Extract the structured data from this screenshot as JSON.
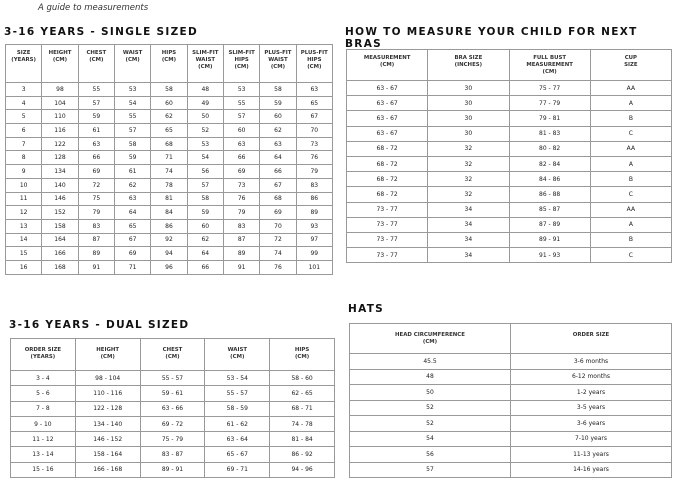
{
  "caption": "A guide to measurements",
  "single": {
    "title": "3-16 YEARS - SINGLE SIZED",
    "headers": [
      [
        "SIZE",
        "(YEARS)"
      ],
      [
        "HEIGHT",
        "(CM)"
      ],
      [
        "CHEST",
        "(CM)"
      ],
      [
        "WAIST",
        "(CM)"
      ],
      [
        "HIPS",
        "(CM)"
      ],
      [
        "SLIM-FIT",
        "WAIST",
        "(CM)"
      ],
      [
        "SLIM-FIT",
        "HIPS",
        "(CM)"
      ],
      [
        "PLUS-FIT",
        "WAIST",
        "(CM)"
      ],
      [
        "PLUS-FIT",
        "HIPS",
        "(CM)"
      ]
    ],
    "rows": [
      [
        "3",
        "98",
        "55",
        "53",
        "58",
        "48",
        "53",
        "58",
        "63"
      ],
      [
        "4",
        "104",
        "57",
        "54",
        "60",
        "49",
        "55",
        "59",
        "65"
      ],
      [
        "5",
        "110",
        "59",
        "55",
        "62",
        "50",
        "57",
        "60",
        "67"
      ],
      [
        "6",
        "116",
        "61",
        "57",
        "65",
        "52",
        "60",
        "62",
        "70"
      ],
      [
        "7",
        "122",
        "63",
        "58",
        "68",
        "53",
        "63",
        "63",
        "73"
      ],
      [
        "8",
        "128",
        "66",
        "59",
        "71",
        "54",
        "66",
        "64",
        "76"
      ],
      [
        "9",
        "134",
        "69",
        "61",
        "74",
        "56",
        "69",
        "66",
        "79"
      ],
      [
        "10",
        "140",
        "72",
        "62",
        "78",
        "57",
        "73",
        "67",
        "83"
      ],
      [
        "11",
        "146",
        "75",
        "63",
        "81",
        "58",
        "76",
        "68",
        "86"
      ],
      [
        "12",
        "152",
        "79",
        "64",
        "84",
        "59",
        "79",
        "69",
        "89"
      ],
      [
        "13",
        "158",
        "83",
        "65",
        "86",
        "60",
        "83",
        "70",
        "93"
      ],
      [
        "14",
        "164",
        "87",
        "67",
        "92",
        "62",
        "87",
        "72",
        "97"
      ],
      [
        "15",
        "166",
        "89",
        "69",
        "94",
        "64",
        "89",
        "74",
        "99"
      ],
      [
        "16",
        "168",
        "91",
        "71",
        "96",
        "66",
        "91",
        "76",
        "101"
      ]
    ]
  },
  "bras": {
    "title": "HOW TO MEASURE YOUR CHILD FOR NEXT BRAS",
    "headers": [
      [
        "MEASUREMENT",
        "(CM)"
      ],
      [
        "BRA SIZE",
        "(INCHES)"
      ],
      [
        "FULL BUST",
        "MEASUREMENT",
        "(CM)"
      ],
      [
        "CUP",
        "SIZE"
      ]
    ],
    "rows": [
      [
        "63 - 67",
        "30",
        "75 - 77",
        "AA"
      ],
      [
        "63 - 67",
        "30",
        "77 - 79",
        "A"
      ],
      [
        "63 - 67",
        "30",
        "79 - 81",
        "B"
      ],
      [
        "63 - 67",
        "30",
        "81 - 83",
        "C"
      ],
      [
        "68 - 72",
        "32",
        "80 - 82",
        "AA"
      ],
      [
        "68 - 72",
        "32",
        "82 - 84",
        "A"
      ],
      [
        "68 - 72",
        "32",
        "84 - 86",
        "B"
      ],
      [
        "68 - 72",
        "32",
        "86 - 88",
        "C"
      ],
      [
        "73 - 77",
        "34",
        "85 - 87",
        "AA"
      ],
      [
        "73 - 77",
        "34",
        "87 - 89",
        "A"
      ],
      [
        "73 - 77",
        "34",
        "89 - 91",
        "B"
      ],
      [
        "73 - 77",
        "34",
        "91 - 93",
        "C"
      ]
    ]
  },
  "dual": {
    "title": "3-16 YEARS - DUAL SIZED",
    "headers": [
      [
        "ORDER SIZE",
        "(YEARS)"
      ],
      [
        "HEIGHT",
        "(CM)"
      ],
      [
        "CHEST",
        "(CM)"
      ],
      [
        "WAIST",
        "(CM)"
      ],
      [
        "HIPS",
        "(CM)"
      ]
    ],
    "rows": [
      [
        "3 - 4",
        "98 - 104",
        "55 - 57",
        "53 - 54",
        "58 - 60"
      ],
      [
        "5 - 6",
        "110 - 116",
        "59 - 61",
        "55 - 57",
        "62 - 65"
      ],
      [
        "7 - 8",
        "122 - 128",
        "63 - 66",
        "58 - 59",
        "68 - 71"
      ],
      [
        "9 - 10",
        "134 - 140",
        "69 - 72",
        "61 - 62",
        "74 - 78"
      ],
      [
        "11 - 12",
        "146 - 152",
        "75 - 79",
        "63 - 64",
        "81 - 84"
      ],
      [
        "13 - 14",
        "158 - 164",
        "83 - 87",
        "65 - 67",
        "86 - 92"
      ],
      [
        "15 - 16",
        "166 - 168",
        "89 - 91",
        "69 - 71",
        "94 - 96"
      ]
    ]
  },
  "hats": {
    "title": "HATS",
    "headers": [
      [
        "HEAD CIRCUMFERENCE",
        "(CM)"
      ],
      [
        "ORDER SIZE"
      ]
    ],
    "rows": [
      [
        "45.5",
        "3-6 months"
      ],
      [
        "48",
        "6-12 months"
      ],
      [
        "50",
        "1-2 years"
      ],
      [
        "52",
        "3-5 years"
      ],
      [
        "52",
        "3-6 years"
      ],
      [
        "54",
        "7-10 years"
      ],
      [
        "56",
        "11-13 years"
      ],
      [
        "57",
        "14-16 years"
      ]
    ]
  }
}
